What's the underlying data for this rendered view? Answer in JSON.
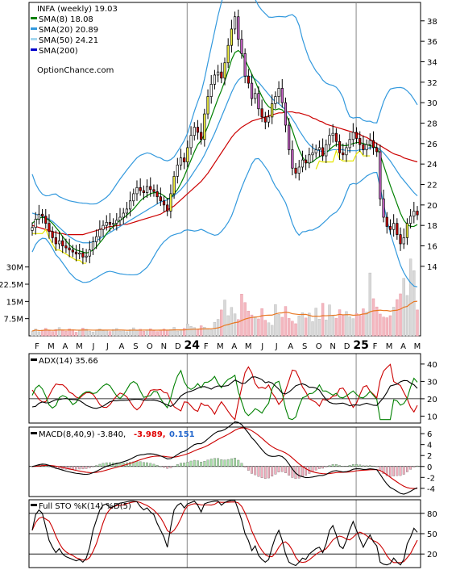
{
  "chart_data": {
    "type": "line",
    "ticker_label": "INFA (weekly) 19.03",
    "source": "OptionChance.com",
    "legend": [
      {
        "label": "SMA(8) 18.08",
        "color": "#008000"
      },
      {
        "label": "SMA(20) 20.89",
        "color": "#3399dd"
      },
      {
        "label": "SMA(50) 24.21",
        "color": "#a6d8f0"
      },
      {
        "label": "SMA(200)",
        "color": "#0000cc"
      }
    ],
    "x_ticks": [
      "F",
      "M",
      "A",
      "M",
      "J",
      "J",
      "A",
      "S",
      "O",
      "N",
      "D",
      "24",
      "F",
      "M",
      "A",
      "M",
      "J",
      "J",
      "A",
      "S",
      "O",
      "N",
      "D",
      "25",
      "F",
      "M",
      "A",
      "M"
    ],
    "y_ticks": [
      14,
      16,
      18,
      20,
      22,
      24,
      26,
      28,
      30,
      32,
      34,
      36,
      38
    ],
    "ylim": [
      13.2,
      39.8
    ],
    "volume": {
      "y_ticks": [
        "30M",
        "22.5M",
        "15M",
        "7.5M"
      ],
      "ylim": [
        0,
        32000000
      ],
      "values": [
        2.1,
        3.0,
        1.8,
        2.5,
        3.3,
        2.2,
        1.9,
        2.8,
        3.6,
        2.4,
        2.0,
        3.1,
        2.7,
        1.6,
        2.3,
        3.4,
        2.9,
        2.0,
        1.7,
        2.6,
        3.0,
        2.2,
        2.5,
        1.9,
        2.8,
        3.2,
        2.1,
        2.4,
        1.8,
        2.7,
        3.5,
        2.3,
        2.9,
        2.0,
        2.6,
        3.1,
        2.2,
        1.9,
        2.5,
        3.0,
        2.4,
        2.8,
        3.7,
        2.1,
        2.6,
        3.3,
        5.2,
        4.1,
        3.6,
        2.9,
        4.4,
        3.8,
        3.1,
        2.7,
        5.9,
        7.2,
        11.3,
        15.6,
        8.8,
        12.4,
        9.6,
        7.1,
        18.2,
        14.5,
        10.8,
        9.1,
        8.3,
        7.4,
        11.9,
        6.8,
        5.7,
        4.6,
        13.6,
        9.4,
        8.1,
        12.8,
        7.6,
        6.4,
        5.3,
        8.7,
        10.1,
        7.8,
        9.9,
        6.2,
        12.1,
        7.3,
        14.2,
        6.9,
        13.5,
        8.6,
        7.7,
        11.4,
        9.2,
        10.6,
        8.4,
        7.5,
        9.8,
        8.9,
        11.8,
        10.4,
        27.4,
        16.2,
        12.6,
        9.5,
        8.2,
        7.9,
        8.8,
        12.5,
        15.8,
        18.3,
        25.1,
        17.6,
        33.5,
        28.4,
        11.3
      ]
    },
    "adx": {
      "label": "ADX(14) 35.66",
      "y_ticks": [
        10,
        20,
        30,
        40
      ],
      "ylim": [
        6,
        46
      ]
    },
    "macd": {
      "label": "MACD(8,40,9) -3.840,",
      "signal_label": "-3.989,",
      "hist_label": "0.151",
      "y_ticks": [
        -4,
        -2,
        0,
        2,
        4,
        6
      ],
      "ylim": [
        -5.5,
        7.2
      ]
    },
    "sto": {
      "label": "Full STO %K(14) %D(5)",
      "y_ticks": [
        20,
        50,
        80
      ],
      "ylim": [
        0,
        100
      ]
    },
    "close": [
      17.8,
      18.6,
      19.1,
      18.9,
      18.2,
      17.4,
      16.8,
      16.2,
      16.5,
      16.0,
      15.8,
      15.6,
      15.4,
      15.2,
      15.3,
      14.9,
      15.0,
      15.6,
      16.4,
      16.9,
      17.6,
      18.0,
      18.3,
      18.1,
      18.2,
      18.5,
      18.8,
      19.2,
      19.6,
      20.4,
      21.1,
      21.7,
      21.4,
      21.2,
      21.8,
      21.5,
      21.3,
      20.8,
      20.4,
      20.0,
      19.4,
      21.1,
      22.8,
      23.9,
      24.6,
      24.2,
      25.6,
      26.8,
      27.6,
      27.1,
      26.4,
      28.9,
      30.6,
      31.8,
      32.7,
      33.0,
      32.4,
      33.9,
      35.6,
      37.2,
      38.4,
      36.2,
      34.8,
      32.6,
      31.9,
      30.4,
      30.9,
      29.4,
      28.6,
      28.1,
      28.6,
      29.9,
      30.6,
      31.4,
      30.0,
      27.8,
      25.4,
      23.6,
      23.1,
      23.7,
      24.4,
      24.1,
      24.9,
      25.1,
      25.4,
      25.6,
      24.8,
      25.9,
      26.8,
      27.0,
      26.2,
      25.1,
      24.9,
      25.6,
      26.4,
      27.1,
      26.5,
      25.9,
      25.4,
      25.9,
      26.3,
      25.6,
      25.2,
      20.6,
      18.8,
      17.9,
      17.6,
      18.2,
      17.1,
      16.2,
      16.8,
      18.2,
      18.9,
      19.4,
      19.03
    ],
    "sma8": [
      18.2,
      18.5,
      18.7,
      18.8,
      18.7,
      18.5,
      18.2,
      17.8,
      17.4,
      16.9,
      16.5,
      16.1,
      15.8,
      15.6,
      15.5,
      15.4,
      15.3,
      15.4,
      15.6,
      15.9,
      16.3,
      16.7,
      17.2,
      17.6,
      17.9,
      18.2,
      18.5,
      18.7,
      19.0,
      19.3,
      19.6,
      20.0,
      20.4,
      20.7,
      20.9,
      21.1,
      21.2,
      21.2,
      21.1,
      20.9,
      20.6,
      20.7,
      21.1,
      21.5,
      22.1,
      22.8,
      23.6,
      24.4,
      25.2,
      25.9,
      26.3,
      26.9,
      27.7,
      28.6,
      29.5,
      30.4,
      31.2,
      32.1,
      33.1,
      34.2,
      34.9,
      35.1,
      34.8,
      34.2,
      33.5,
      32.8,
      32.1,
      31.3,
      30.6,
      30.0,
      29.6,
      29.4,
      29.3,
      29.4,
      29.3,
      28.9,
      28.2,
      27.3,
      26.3,
      25.4,
      24.7,
      24.2,
      24.1,
      24.2,
      24.5,
      24.7,
      24.9,
      25.1,
      25.4,
      25.7,
      25.9,
      25.9,
      25.8,
      25.8,
      25.9,
      26.0,
      26.1,
      26.1,
      26.0,
      25.9,
      25.8,
      25.7,
      25.6,
      24.9,
      23.9,
      22.9,
      21.9,
      21.0,
      20.1,
      19.2,
      18.5,
      18.1,
      17.9,
      17.9,
      18.08
    ],
    "sma20": [
      19.2,
      19.1,
      19.0,
      18.9,
      18.8,
      18.6,
      18.4,
      18.1,
      17.8,
      17.5,
      17.2,
      16.9,
      16.7,
      16.5,
      16.4,
      16.3,
      16.3,
      16.3,
      16.4,
      16.5,
      16.7,
      16.9,
      17.1,
      17.3,
      17.5,
      17.7,
      17.9,
      18.1,
      18.3,
      18.5,
      18.7,
      18.9,
      19.1,
      19.3,
      19.5,
      19.7,
      19.9,
      20.1,
      20.3,
      20.4,
      20.5,
      20.7,
      20.9,
      21.2,
      21.5,
      21.9,
      22.3,
      22.8,
      23.3,
      23.8,
      24.3,
      24.9,
      25.6,
      26.3,
      27.0,
      27.8,
      28.6,
      29.4,
      30.2,
      31.0,
      31.7,
      32.2,
      32.5,
      32.6,
      32.6,
      32.5,
      32.3,
      32.0,
      31.6,
      31.2,
      30.8,
      30.4,
      30.1,
      29.9,
      29.6,
      29.3,
      28.9,
      28.4,
      27.9,
      27.3,
      26.8,
      26.3,
      25.9,
      25.6,
      25.4,
      25.3,
      25.2,
      25.2,
      25.3,
      25.4,
      25.4,
      25.4,
      25.4,
      25.3,
      25.3,
      25.3,
      25.3,
      25.4,
      25.4,
      25.5,
      25.6,
      25.6,
      25.6,
      25.4,
      25.1,
      24.7,
      24.3,
      23.8,
      23.3,
      22.8,
      22.4,
      22.0,
      21.6,
      21.2,
      20.89
    ],
    "sma50": [
      18.0,
      17.9,
      17.8,
      17.7,
      17.6,
      17.5,
      17.4,
      17.3,
      17.2,
      17.2,
      17.1,
      17.1,
      17.1,
      17.1,
      17.1,
      17.1,
      17.2,
      17.3,
      17.4,
      17.5,
      17.6,
      17.7,
      17.8,
      17.9,
      17.9,
      18.0,
      18.0,
      18.1,
      18.1,
      18.2,
      18.3,
      18.4,
      18.5,
      18.6,
      18.7,
      18.8,
      18.9,
      19.0,
      19.1,
      19.3,
      19.5,
      19.7,
      19.9,
      20.2,
      20.5,
      20.8,
      21.1,
      21.4,
      21.7,
      22.0,
      22.3,
      22.7,
      23.1,
      23.6,
      24.1,
      24.6,
      25.1,
      25.6,
      26.1,
      26.6,
      27.0,
      27.3,
      27.6,
      27.8,
      28.0,
      28.2,
      28.3,
      28.4,
      28.5,
      28.6,
      28.7,
      28.8,
      28.9,
      29.0,
      29.0,
      29.1,
      29.1,
      29.1,
      29.0,
      29.0,
      28.9,
      28.8,
      28.7,
      28.5,
      28.4,
      28.2,
      28.1,
      27.9,
      27.8,
      27.7,
      27.6,
      27.5,
      27.4,
      27.3,
      27.2,
      27.1,
      27.0,
      26.9,
      26.7,
      26.6,
      26.4,
      26.2,
      26.0,
      25.8,
      25.6,
      25.4,
      25.2,
      25.0,
      24.9,
      24.8,
      24.6,
      24.5,
      24.4,
      24.3,
      24.21
    ],
    "sto_k": [
      55,
      78,
      85,
      80,
      60,
      40,
      30,
      22,
      28,
      20,
      16,
      14,
      12,
      10,
      12,
      8,
      14,
      30,
      55,
      70,
      85,
      92,
      94,
      88,
      90,
      93,
      95,
      96,
      97,
      98,
      98,
      97,
      90,
      85,
      88,
      82,
      78,
      65,
      55,
      45,
      30,
      60,
      85,
      92,
      95,
      88,
      94,
      96,
      98,
      92,
      82,
      94,
      96,
      97,
      98,
      98,
      92,
      96,
      98,
      99,
      99,
      85,
      70,
      50,
      40,
      25,
      32,
      18,
      12,
      8,
      12,
      30,
      45,
      55,
      40,
      20,
      8,
      5,
      3,
      8,
      14,
      12,
      20,
      24,
      28,
      30,
      22,
      35,
      55,
      62,
      48,
      32,
      28,
      40,
      56,
      68,
      55,
      42,
      30,
      40,
      48,
      38,
      32,
      8,
      5,
      4,
      6,
      14,
      8,
      4,
      12,
      35,
      45,
      58,
      52
    ]
  }
}
